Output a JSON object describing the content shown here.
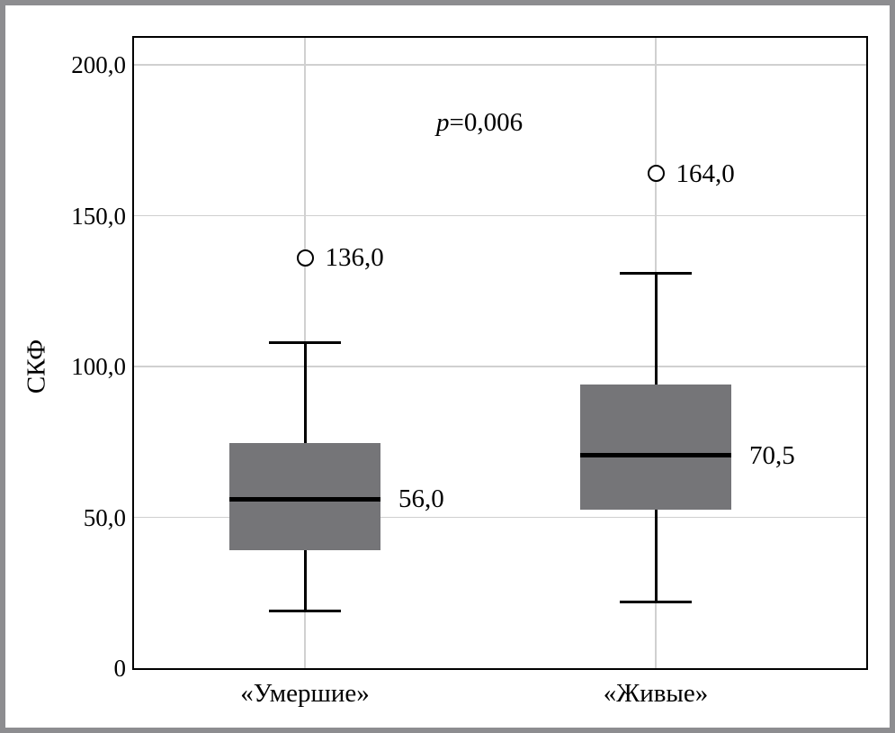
{
  "chart_data": {
    "type": "boxplot",
    "title": "",
    "ylabel": "СКФ",
    "xlabel": "",
    "ylim": [
      0,
      209
    ],
    "grid": "on",
    "legend": "none",
    "yticks": [
      {
        "value": 0,
        "label": "0"
      },
      {
        "value": 50,
        "label": "50,0"
      },
      {
        "value": 100,
        "label": "100,0"
      },
      {
        "value": 150,
        "label": "150,0"
      },
      {
        "value": 200,
        "label": "200,0"
      }
    ],
    "annotation": {
      "italic": "p",
      "text": "=0,006"
    },
    "categories": [
      "«Умершие»",
      "«Живые»"
    ],
    "series": [
      {
        "category": "«Умершие»",
        "whisker_low": 19,
        "q1": 39,
        "median": 56,
        "q3": 74.5,
        "whisker_high": 108,
        "median_label": "56,0",
        "outliers": [
          {
            "value": 136,
            "label": "136,0"
          }
        ]
      },
      {
        "category": "«Живые»",
        "whisker_low": 22,
        "q1": 52.5,
        "median": 70.5,
        "q3": 94,
        "whisker_high": 131,
        "median_label": "70,5",
        "outliers": [
          {
            "value": 164,
            "label": "164,0"
          }
        ]
      }
    ],
    "colors": {
      "box_fill": "#757578",
      "median_line": "#000000",
      "whisker_line": "#000000",
      "grid_line": "#d0d0d0",
      "axis_frame": "#000000",
      "outer_border": "#8d8d90",
      "text": "#000000",
      "background": "#ffffff"
    }
  }
}
